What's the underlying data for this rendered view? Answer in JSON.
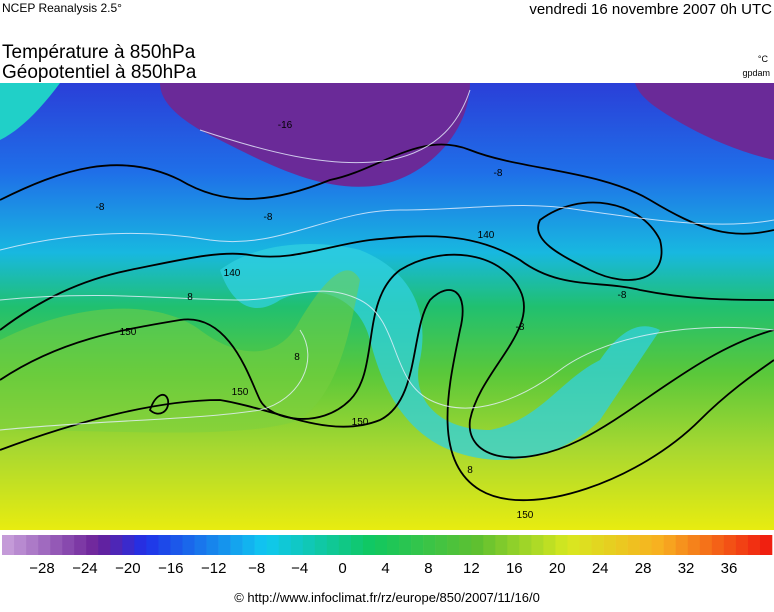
{
  "header": {
    "source": "NCEP Reanalysis 2.5°",
    "date": "vendredi 16 novembre 2007 0h UTC",
    "title_1": "Température à 850hPa",
    "title_2": "Géopotentiel à 850hPa",
    "unit_1": "°C",
    "unit_2": "gpdam"
  },
  "map": {
    "labels": [
      "-16",
      "-8",
      "-8",
      "-8",
      "140",
      "140",
      "150",
      "150",
      "150",
      "150",
      "8",
      "8",
      "8",
      "-8",
      "-8"
    ]
  },
  "legend": {
    "labels": [
      "−28",
      "−24",
      "−20",
      "−16",
      "−12",
      "−8",
      "−4",
      "0",
      "4",
      "8",
      "12",
      "16",
      "20",
      "24",
      "28",
      "32",
      "36"
    ]
  },
  "footer": {
    "credit": "© http://www.infoclimat.fr/rz/europe/850/2007/11/16/0"
  }
}
